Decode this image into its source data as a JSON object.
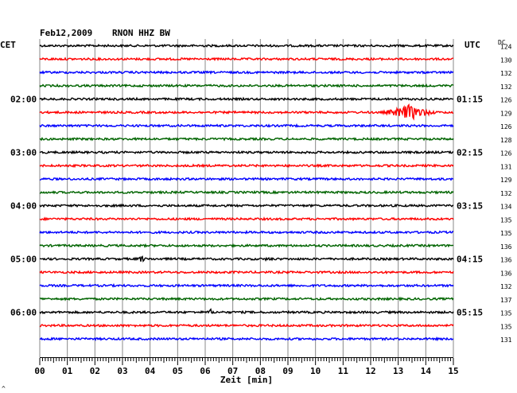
{
  "header": {
    "date": "Feb12,2009",
    "station": "RNON HHZ BW",
    "left_tz": "CET",
    "right_tz": "UTC",
    "dc_label": "DC"
  },
  "footer": {
    "xlabel": "Zeit [min]",
    "corner_mark": "^"
  },
  "chart_data": {
    "type": "line",
    "title": "Feb12,2009 RNON HHZ BW",
    "xlabel": "Zeit [min]",
    "xlim": [
      0,
      15
    ],
    "x_ticks": [
      "00",
      "01",
      "02",
      "03",
      "04",
      "05",
      "06",
      "07",
      "08",
      "09",
      "10",
      "11",
      "12",
      "13",
      "14",
      "15"
    ],
    "trace_colors": [
      "#000000",
      "#ff0000",
      "#0000ff",
      "#006400"
    ],
    "left_hour_labels": [
      {
        "trace": 4,
        "label": "02:00"
      },
      {
        "trace": 8,
        "label": "03:00"
      },
      {
        "trace": 12,
        "label": "04:00"
      },
      {
        "trace": 16,
        "label": "05:00"
      },
      {
        "trace": 20,
        "label": "06:00"
      }
    ],
    "right_hour_labels": [
      {
        "trace": 4,
        "label": "01:15"
      },
      {
        "trace": 8,
        "label": "02:15"
      },
      {
        "trace": 12,
        "label": "03:15"
      },
      {
        "trace": 16,
        "label": "04:15"
      },
      {
        "trace": 20,
        "label": "05:15"
      }
    ],
    "dc_offsets": [
      124,
      130,
      132,
      132,
      126,
      129,
      126,
      128,
      126,
      131,
      129,
      132,
      134,
      135,
      135,
      136,
      136,
      136,
      132,
      137,
      135,
      135,
      131
    ],
    "events": [
      {
        "trace": 5,
        "minute": 13.4,
        "amplitude_px": 10,
        "duration_min": 1.6
      },
      {
        "trace": 16,
        "minute": 3.7,
        "amplitude_px": 5,
        "duration_min": 0.3
      },
      {
        "trace": 16,
        "minute": 8.3,
        "amplitude_px": 2.5,
        "duration_min": 0.6
      },
      {
        "trace": 20,
        "minute": 6.2,
        "amplitude_px": 4,
        "duration_min": 0.3
      }
    ]
  }
}
